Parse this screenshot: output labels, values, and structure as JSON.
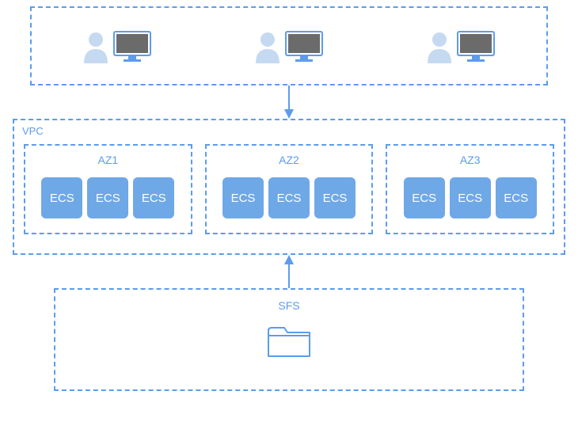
{
  "colors": {
    "border": "#5d9cec",
    "text": "#5d9cec",
    "ecs_fill": "#6fa8e6",
    "user_light": "#c5d9f1",
    "monitor_frame": "#5d9cec",
    "monitor_screen": "#6b6b6b",
    "arrow": "#5d9cec",
    "folder_stroke": "#5d9cec"
  },
  "vpc": {
    "label": "VPC",
    "zones": [
      {
        "label": "AZ1",
        "ecs": [
          "ECS",
          "ECS",
          "ECS"
        ]
      },
      {
        "label": "AZ2",
        "ecs": [
          "ECS",
          "ECS",
          "ECS"
        ]
      },
      {
        "label": "AZ3",
        "ecs": [
          "ECS",
          "ECS",
          "ECS"
        ]
      }
    ]
  },
  "sfs": {
    "label": "SFS"
  },
  "users": {
    "count": 3
  }
}
